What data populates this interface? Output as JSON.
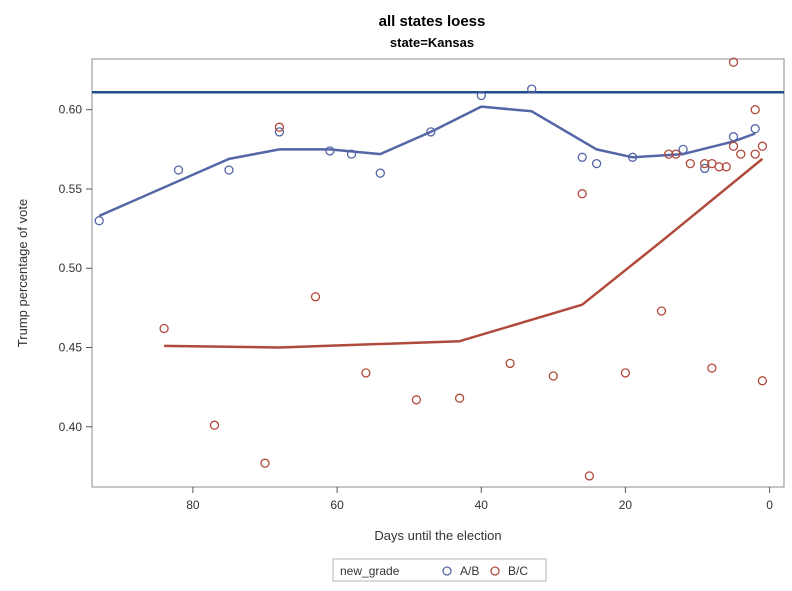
{
  "chart_data": {
    "type": "scatter",
    "title": "all states loess",
    "subtitle": "state=Kansas",
    "xlabel": "Days until the election",
    "ylabel": "Trump percentage of vote",
    "x_reversed": true,
    "xlim": [
      94,
      -2
    ],
    "ylim": [
      0.362,
      0.632
    ],
    "x_ticks": [
      80,
      60,
      40,
      20,
      0
    ],
    "y_ticks": [
      0.4,
      0.45,
      0.5,
      0.55,
      0.6
    ],
    "y_tick_labels": [
      "0.40",
      "0.45",
      "0.50",
      "0.55",
      "0.60"
    ],
    "grid": false,
    "reference_line": {
      "y": 0.611,
      "color": "#1f4e8c"
    },
    "legend": {
      "title": "new_grade",
      "position": "bottom",
      "entries": [
        {
          "label": "A/B",
          "color": "#5566a6"
        },
        {
          "label": "B/C",
          "color": "#b04a3c"
        }
      ]
    },
    "series": [
      {
        "name": "A/B",
        "color": "#5566a6",
        "points": [
          {
            "x": 93,
            "y": 0.53
          },
          {
            "x": 82,
            "y": 0.562
          },
          {
            "x": 75,
            "y": 0.562
          },
          {
            "x": 68,
            "y": 0.586
          },
          {
            "x": 61,
            "y": 0.574
          },
          {
            "x": 58,
            "y": 0.572
          },
          {
            "x": 54,
            "y": 0.56
          },
          {
            "x": 47,
            "y": 0.586
          },
          {
            "x": 40,
            "y": 0.609
          },
          {
            "x": 33,
            "y": 0.613
          },
          {
            "x": 26,
            "y": 0.57
          },
          {
            "x": 24,
            "y": 0.566
          },
          {
            "x": 19,
            "y": 0.57
          },
          {
            "x": 12,
            "y": 0.575
          },
          {
            "x": 9,
            "y": 0.563
          },
          {
            "x": 5,
            "y": 0.583
          },
          {
            "x": 2,
            "y": 0.588
          }
        ],
        "loess": [
          {
            "x": 93,
            "y": 0.533
          },
          {
            "x": 75,
            "y": 0.569
          },
          {
            "x": 68,
            "y": 0.575
          },
          {
            "x": 61,
            "y": 0.575
          },
          {
            "x": 54,
            "y": 0.572
          },
          {
            "x": 47,
            "y": 0.586
          },
          {
            "x": 40,
            "y": 0.602
          },
          {
            "x": 33,
            "y": 0.599
          },
          {
            "x": 24,
            "y": 0.575
          },
          {
            "x": 19,
            "y": 0.57
          },
          {
            "x": 12,
            "y": 0.572
          },
          {
            "x": 5,
            "y": 0.58
          },
          {
            "x": 2,
            "y": 0.585
          }
        ]
      },
      {
        "name": "B/C",
        "color": "#b04a3c",
        "points": [
          {
            "x": 84,
            "y": 0.462
          },
          {
            "x": 77,
            "y": 0.401
          },
          {
            "x": 70,
            "y": 0.377
          },
          {
            "x": 68,
            "y": 0.589
          },
          {
            "x": 63,
            "y": 0.482
          },
          {
            "x": 56,
            "y": 0.434
          },
          {
            "x": 49,
            "y": 0.417
          },
          {
            "x": 43,
            "y": 0.418
          },
          {
            "x": 36,
            "y": 0.44
          },
          {
            "x": 30,
            "y": 0.432
          },
          {
            "x": 26,
            "y": 0.547
          },
          {
            "x": 25,
            "y": 0.369
          },
          {
            "x": 20,
            "y": 0.434
          },
          {
            "x": 15,
            "y": 0.473
          },
          {
            "x": 14,
            "y": 0.572
          },
          {
            "x": 13,
            "y": 0.572
          },
          {
            "x": 11,
            "y": 0.566
          },
          {
            "x": 9,
            "y": 0.566
          },
          {
            "x": 8,
            "y": 0.566
          },
          {
            "x": 8,
            "y": 0.437
          },
          {
            "x": 7,
            "y": 0.564
          },
          {
            "x": 6,
            "y": 0.564
          },
          {
            "x": 5,
            "y": 0.63
          },
          {
            "x": 5,
            "y": 0.577
          },
          {
            "x": 4,
            "y": 0.572
          },
          {
            "x": 2,
            "y": 0.6
          },
          {
            "x": 2,
            "y": 0.572
          },
          {
            "x": 1,
            "y": 0.577
          },
          {
            "x": 1,
            "y": 0.429
          }
        ],
        "loess": [
          {
            "x": 84,
            "y": 0.451
          },
          {
            "x": 68,
            "y": 0.45
          },
          {
            "x": 43,
            "y": 0.454
          },
          {
            "x": 26,
            "y": 0.477
          },
          {
            "x": 15,
            "y": 0.517
          },
          {
            "x": 1,
            "y": 0.569
          }
        ]
      }
    ]
  }
}
